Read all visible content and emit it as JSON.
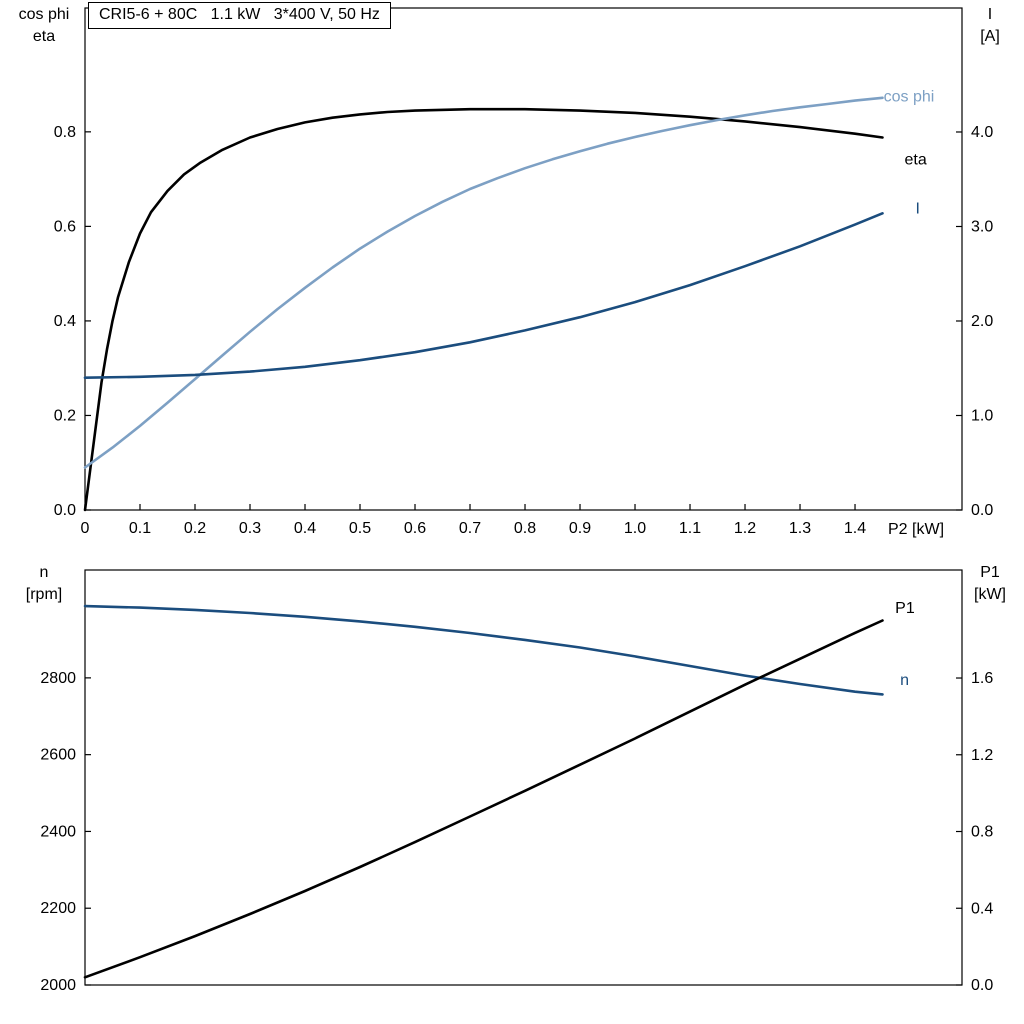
{
  "title_box": "CRI5-6 + 80C   1.1 kW   3*400 V, 50 Hz",
  "colors": {
    "black_curve": "#000000",
    "light_blue_curve": "#7da0c4",
    "dark_blue_curve": "#1b4d7e",
    "axis": "#000000",
    "background": "#ffffff"
  },
  "chart_data": [
    {
      "type": "line",
      "title": "CRI5-6 + 80C   1.1 kW   3*400 V, 50 Hz",
      "axis_labels": {
        "left_line1": "cos phi",
        "left_line2": "eta",
        "right_line1": "I",
        "right_line2": "[A]",
        "x_right": "P2 [kW]"
      },
      "xlim": [
        0,
        1.5945
      ],
      "x_ticks": [
        0,
        0.1,
        0.2,
        0.3,
        0.4,
        0.5,
        0.6,
        0.7,
        0.8,
        0.9,
        1.0,
        1.1,
        1.2,
        1.3,
        1.4
      ],
      "x_tick_labels": [
        "0",
        "0.1",
        "0.2",
        "0.3",
        "0.4",
        "0.5",
        "0.6",
        "0.7",
        "0.8",
        "0.9",
        "1.0",
        "1.1",
        "1.2",
        "1.3",
        "1.4"
      ],
      "left_ylim": [
        0,
        1.062
      ],
      "left_ticks": [
        0,
        0.2,
        0.4,
        0.6,
        0.8
      ],
      "left_tick_labels": [
        "0.0",
        "0.2",
        "0.4",
        "0.6",
        "0.8"
      ],
      "right_ylim": [
        0,
        5.312
      ],
      "right_ticks": [
        0,
        1,
        2,
        3,
        4
      ],
      "right_tick_labels": [
        "0.0",
        "1.0",
        "2.0",
        "3.0",
        "4.0"
      ],
      "legend_position": "end-of-curve labels",
      "grid": false,
      "series": [
        {
          "name": "eta",
          "label": "eta",
          "axis": "left",
          "color": "#000000",
          "label_x": 1.49,
          "label_y": 0.742,
          "points": [
            [
              0,
              0
            ],
            [
              0.01,
              0.09
            ],
            [
              0.02,
              0.18
            ],
            [
              0.03,
              0.27
            ],
            [
              0.04,
              0.34
            ],
            [
              0.05,
              0.4
            ],
            [
              0.06,
              0.45
            ],
            [
              0.08,
              0.525
            ],
            [
              0.1,
              0.585
            ],
            [
              0.12,
              0.63
            ],
            [
              0.15,
              0.675
            ],
            [
              0.18,
              0.71
            ],
            [
              0.21,
              0.735
            ],
            [
              0.25,
              0.762
            ],
            [
              0.3,
              0.788
            ],
            [
              0.35,
              0.806
            ],
            [
              0.4,
              0.82
            ],
            [
              0.45,
              0.83
            ],
            [
              0.5,
              0.837
            ],
            [
              0.55,
              0.842
            ],
            [
              0.6,
              0.845
            ],
            [
              0.7,
              0.848
            ],
            [
              0.8,
              0.848
            ],
            [
              0.9,
              0.845
            ],
            [
              1.0,
              0.84
            ],
            [
              1.1,
              0.832
            ],
            [
              1.2,
              0.822
            ],
            [
              1.3,
              0.81
            ],
            [
              1.4,
              0.796
            ],
            [
              1.45,
              0.788
            ]
          ]
        },
        {
          "name": "cos-phi",
          "label": "cos phi",
          "axis": "left",
          "color": "#7da0c4",
          "label_x": 1.452,
          "label_y": 0.875,
          "points": [
            [
              0,
              0.09
            ],
            [
              0.05,
              0.132
            ],
            [
              0.1,
              0.178
            ],
            [
              0.15,
              0.227
            ],
            [
              0.2,
              0.277
            ],
            [
              0.25,
              0.327
            ],
            [
              0.3,
              0.377
            ],
            [
              0.35,
              0.425
            ],
            [
              0.4,
              0.47
            ],
            [
              0.45,
              0.513
            ],
            [
              0.5,
              0.553
            ],
            [
              0.55,
              0.589
            ],
            [
              0.6,
              0.622
            ],
            [
              0.65,
              0.652
            ],
            [
              0.7,
              0.679
            ],
            [
              0.75,
              0.702
            ],
            [
              0.8,
              0.723
            ],
            [
              0.85,
              0.742
            ],
            [
              0.9,
              0.759
            ],
            [
              0.95,
              0.775
            ],
            [
              1.0,
              0.789
            ],
            [
              1.05,
              0.802
            ],
            [
              1.1,
              0.814
            ],
            [
              1.15,
              0.825
            ],
            [
              1.2,
              0.835
            ],
            [
              1.25,
              0.844
            ],
            [
              1.3,
              0.852
            ],
            [
              1.35,
              0.859
            ],
            [
              1.4,
              0.866
            ],
            [
              1.45,
              0.872
            ]
          ]
        },
        {
          "name": "current",
          "label": "I",
          "axis": "right",
          "color": "#1b4d7e",
          "label_x": 1.51,
          "label_y": 3.19,
          "points": [
            [
              0,
              1.4
            ],
            [
              0.1,
              1.41
            ],
            [
              0.2,
              1.43
            ],
            [
              0.3,
              1.465
            ],
            [
              0.4,
              1.515
            ],
            [
              0.5,
              1.585
            ],
            [
              0.6,
              1.67
            ],
            [
              0.7,
              1.775
            ],
            [
              0.8,
              1.9
            ],
            [
              0.9,
              2.04
            ],
            [
              1.0,
              2.2
            ],
            [
              1.1,
              2.38
            ],
            [
              1.2,
              2.58
            ],
            [
              1.3,
              2.79
            ],
            [
              1.4,
              3.02
            ],
            [
              1.45,
              3.14
            ]
          ]
        }
      ]
    },
    {
      "type": "line",
      "title": "",
      "axis_labels": {
        "left_line1": "n",
        "left_line2": "[rpm]",
        "right_line1": "P1",
        "right_line2": "[kW]",
        "x_right": ""
      },
      "xlim": [
        0,
        1.5945
      ],
      "x_ticks": [],
      "x_tick_labels": [],
      "left_ylim": [
        2000,
        3081
      ],
      "left_ticks": [
        2000,
        2200,
        2400,
        2600,
        2800
      ],
      "left_tick_labels": [
        "2000",
        "2200",
        "2400",
        "2600",
        "2800"
      ],
      "right_ylim": [
        0,
        2.163
      ],
      "right_ticks": [
        0,
        0.4,
        0.8,
        1.2,
        1.6
      ],
      "right_tick_labels": [
        "0.0",
        "0.4",
        "0.8",
        "1.2",
        "1.6"
      ],
      "legend_position": "end-of-curve labels",
      "grid": false,
      "series": [
        {
          "name": "speed",
          "label": "n",
          "axis": "left",
          "color": "#1b4d7e",
          "label_x": 1.482,
          "label_y": 2794,
          "points": [
            [
              0,
              2987
            ],
            [
              0.1,
              2983
            ],
            [
              0.2,
              2977
            ],
            [
              0.3,
              2969
            ],
            [
              0.4,
              2959
            ],
            [
              0.5,
              2947
            ],
            [
              0.6,
              2933
            ],
            [
              0.7,
              2917
            ],
            [
              0.8,
              2899
            ],
            [
              0.9,
              2879
            ],
            [
              1.0,
              2856
            ],
            [
              1.1,
              2831
            ],
            [
              1.2,
              2806
            ],
            [
              1.3,
              2784
            ],
            [
              1.4,
              2764
            ],
            [
              1.45,
              2757
            ]
          ]
        },
        {
          "name": "input-power",
          "label": "P1",
          "axis": "right",
          "color": "#000000",
          "label_x": 1.473,
          "label_y": 1.965,
          "points": [
            [
              0,
              0.04
            ],
            [
              0.1,
              0.145
            ],
            [
              0.2,
              0.255
            ],
            [
              0.3,
              0.37
            ],
            [
              0.4,
              0.49
            ],
            [
              0.5,
              0.615
            ],
            [
              0.6,
              0.745
            ],
            [
              0.7,
              0.878
            ],
            [
              0.8,
              1.012
            ],
            [
              0.9,
              1.148
            ],
            [
              1.0,
              1.285
            ],
            [
              1.1,
              1.425
            ],
            [
              1.2,
              1.565
            ],
            [
              1.3,
              1.7
            ],
            [
              1.4,
              1.835
            ],
            [
              1.45,
              1.9
            ]
          ]
        }
      ]
    }
  ]
}
